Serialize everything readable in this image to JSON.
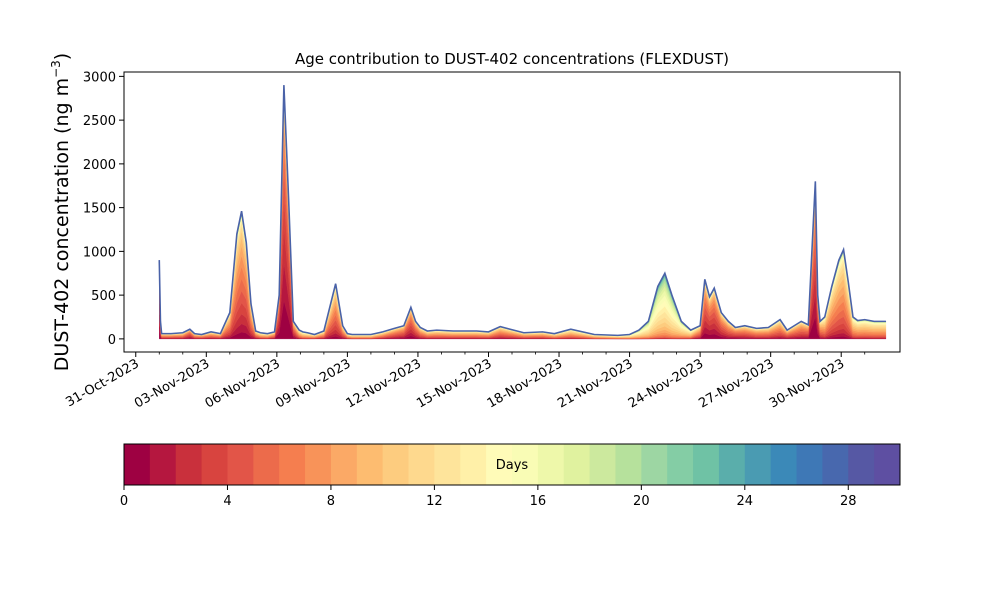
{
  "chart_data": {
    "type": "area",
    "title": "Age contribution to DUST-402 concentrations (FLEXDUST)",
    "ylabel_main": "DUST-402 concentration (ng m",
    "ylabel_sup": "−3",
    "ylabel_close": ")",
    "xlabel": "",
    "ylim": [
      -150,
      3050
    ],
    "yticks": [
      0,
      500,
      1000,
      1500,
      2000,
      2500,
      3000
    ],
    "xlim_days": [
      -0.5,
      32.5
    ],
    "xtick_labels": [
      "31-Oct-2023",
      "03-Nov-2023",
      "06-Nov-2023",
      "09-Nov-2023",
      "12-Nov-2023",
      "15-Nov-2023",
      "18-Nov-2023",
      "21-Nov-2023",
      "24-Nov-2023",
      "27-Nov-2023",
      "30-Nov-2023"
    ],
    "xtick_days": [
      0,
      3,
      6,
      9,
      12,
      15,
      18,
      21,
      24,
      27,
      30
    ],
    "series_x_days": [
      1.0,
      1.05,
      1.1,
      1.5,
      2.0,
      2.3,
      2.5,
      2.8,
      3.2,
      3.6,
      4.0,
      4.3,
      4.5,
      4.7,
      4.9,
      5.1,
      5.3,
      5.6,
      5.9,
      6.1,
      6.3,
      6.5,
      6.7,
      6.85,
      6.95,
      7.1,
      7.3,
      7.6,
      8.0,
      8.5,
      8.8,
      9.0,
      9.2,
      9.5,
      10.0,
      10.5,
      11.0,
      11.4,
      11.7,
      11.9,
      12.1,
      12.4,
      12.8,
      13.5,
      14.5,
      15.0,
      15.5,
      16.5,
      17.3,
      17.8,
      18.5,
      19.5,
      20.5,
      21.0,
      21.4,
      21.8,
      22.2,
      22.5,
      22.8,
      23.2,
      23.6,
      24.0,
      24.2,
      24.4,
      24.6,
      24.9,
      25.2,
      25.5,
      25.9,
      26.4,
      26.9,
      27.4,
      27.7,
      28.0,
      28.3,
      28.6,
      28.9,
      29.0,
      29.1,
      29.3,
      29.6,
      29.9,
      30.1,
      30.3,
      30.5,
      30.7,
      31.0,
      31.4,
      31.9
    ],
    "series_total": [
      900,
      200,
      60,
      60,
      70,
      110,
      60,
      50,
      80,
      60,
      300,
      1200,
      1460,
      1100,
      400,
      90,
      70,
      60,
      80,
      500,
      2900,
      1600,
      200,
      140,
      100,
      80,
      70,
      50,
      90,
      630,
      150,
      60,
      50,
      50,
      50,
      80,
      120,
      150,
      360,
      200,
      130,
      90,
      100,
      90,
      90,
      80,
      140,
      70,
      80,
      60,
      110,
      50,
      40,
      50,
      100,
      200,
      600,
      750,
      500,
      200,
      100,
      150,
      680,
      480,
      580,
      300,
      200,
      130,
      150,
      120,
      130,
      220,
      100,
      150,
      200,
      160,
      1800,
      500,
      200,
      250,
      600,
      900,
      1020,
      650,
      250,
      210,
      220,
      200,
      200
    ],
    "series_mode_age_days": [
      0.3,
      3,
      6,
      6,
      6,
      3,
      6,
      6,
      6,
      6,
      6,
      6,
      5.5,
      5,
      6,
      6,
      8,
      8,
      6,
      1,
      0.5,
      0.8,
      3,
      6,
      8,
      9,
      9,
      8,
      7,
      6,
      6,
      8,
      9,
      9,
      9,
      7,
      5,
      4,
      3,
      4,
      6,
      7,
      7,
      7,
      7,
      7,
      6,
      7,
      7,
      8,
      8,
      9,
      10,
      11,
      12,
      13,
      14,
      14,
      14,
      12,
      10,
      6,
      3,
      3,
      3,
      4,
      5,
      4,
      5,
      6,
      6,
      6,
      5,
      5,
      5,
      4,
      1,
      2,
      6,
      8,
      7.5,
      7.5,
      7.5,
      8,
      9,
      9,
      9,
      9,
      9
    ],
    "colorbar_label": "Days",
    "colorbar_range": [
      0,
      30
    ],
    "colorbar_ticks": [
      0,
      4,
      8,
      12,
      16,
      20,
      24,
      28
    ],
    "colorbar_colors": [
      "#9e0142",
      "#b5173f",
      "#c9303c",
      "#d8443f",
      "#e25548",
      "#ec6b4b",
      "#f57e4f",
      "#f89359",
      "#fba966",
      "#fdbc70",
      "#fdcc7f",
      "#fed98e",
      "#fee49b",
      "#fff0a8",
      "#fffbb8",
      "#f9fcb5",
      "#eef8aa",
      "#e0f29f",
      "#cce99e",
      "#b6e19c",
      "#9dd6a3",
      "#84cda5",
      "#6fc2a5",
      "#5aaeab",
      "#4a9bb2",
      "#3b89b8",
      "#3e78b6",
      "#4868ae",
      "#5658a4",
      "#5e4fa2"
    ]
  }
}
